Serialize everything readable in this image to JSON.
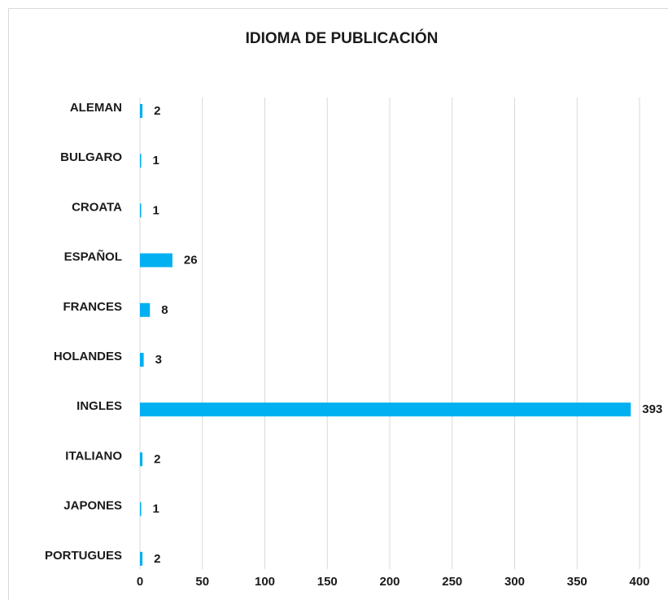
{
  "chart_data": {
    "type": "bar",
    "orientation": "horizontal",
    "title": "IDIOMA DE PUBLICACIÓN",
    "categories": [
      "ALEMAN",
      "BULGARO",
      "CROATA",
      "ESPAÑOL",
      "FRANCES",
      "HOLANDES",
      "INGLES",
      "ITALIANO",
      "JAPONES",
      "PORTUGUES"
    ],
    "values": [
      2,
      1,
      1,
      26,
      8,
      3,
      393,
      2,
      1,
      2
    ],
    "color": "#00b0f0",
    "xlim": [
      0,
      400
    ],
    "xticks": [
      0,
      50,
      100,
      150,
      200,
      250,
      300,
      350,
      400
    ],
    "grid": true
  }
}
